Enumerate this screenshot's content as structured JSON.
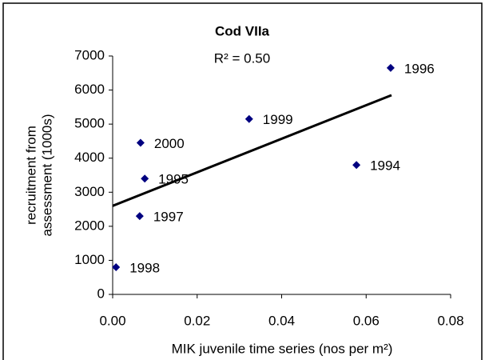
{
  "chart_data": {
    "type": "scatter",
    "title": "Cod VIIa",
    "annotation": "R² = 0.50",
    "xlabel": "MIK juvenile time series (nos per m²)",
    "ylabel": [
      "recruitment from",
      "assessment (1000s)"
    ],
    "series": [
      {
        "color": "#000080",
        "labels": [
          "1996",
          "1994",
          "1999",
          "2000",
          "1995",
          "1997",
          "1998"
        ],
        "x": [
          0.0658,
          0.0577,
          0.0323,
          0.0066,
          0.0076,
          0.0064,
          0.0008
        ],
        "values": [
          6650,
          3800,
          5150,
          4450,
          3400,
          2300,
          800
        ]
      }
    ],
    "trendline": {
      "color": "#000000",
      "x": [
        0,
        0.066
      ],
      "values": [
        2600,
        5850
      ]
    },
    "xlim": [
      0,
      0.08
    ],
    "xticks": [
      {
        "value": 0,
        "label": "0.00"
      },
      {
        "value": 0.02,
        "label": "0.02"
      },
      {
        "value": 0.04,
        "label": "0.04"
      },
      {
        "value": 0.06,
        "label": "0.06"
      },
      {
        "value": 0.08,
        "label": "0.08"
      }
    ],
    "ylim": [
      0,
      7000
    ],
    "yticks": [
      0,
      1000,
      2000,
      3000,
      4000,
      5000,
      6000,
      7000
    ],
    "grid": false
  }
}
